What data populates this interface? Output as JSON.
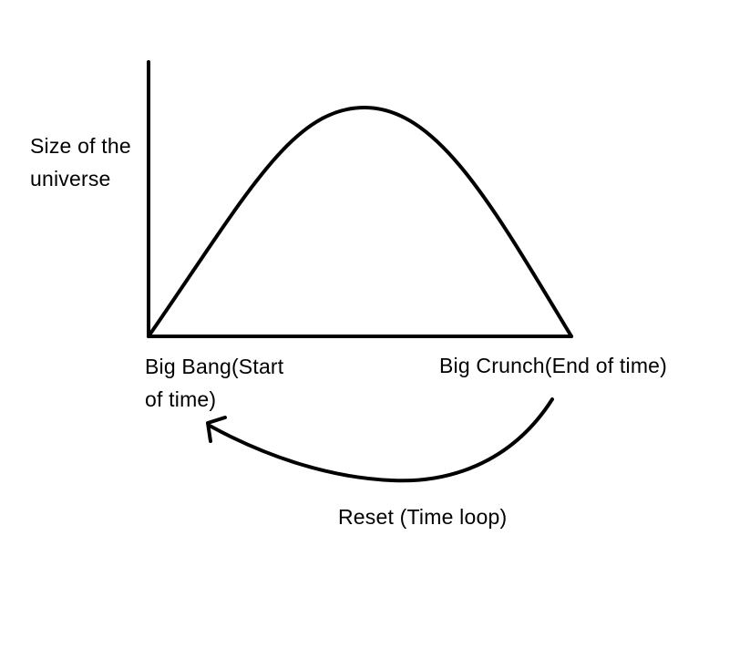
{
  "diagram": {
    "y_axis_label_line1": "Size of the",
    "y_axis_label_line2": "universe",
    "start_label_line1": "Big Bang(Start",
    "start_label_line2": "of time)",
    "end_label": "Big Crunch(End of time)",
    "loop_label": "Reset (Time loop)",
    "stroke_color": "#000000",
    "background_color": "#ffffff"
  }
}
